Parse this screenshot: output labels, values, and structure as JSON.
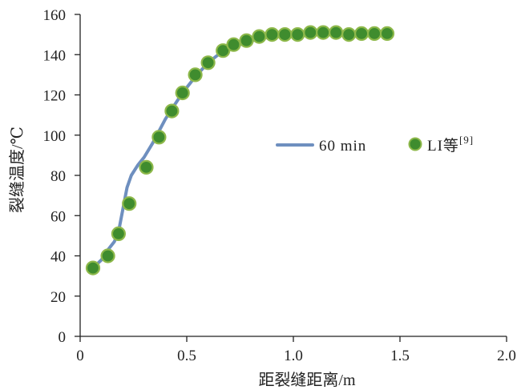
{
  "chart_data": {
    "type": "line",
    "xlabel": "距裂缝距离/m",
    "ylabel": "裂缝温度/℃",
    "xlim": [
      0,
      2.0
    ],
    "ylim": [
      0,
      160
    ],
    "x_ticks": [
      "0",
      "0.5",
      "1.0",
      "1.5",
      "2.0"
    ],
    "y_ticks": [
      "0",
      "20",
      "40",
      "60",
      "80",
      "100",
      "120",
      "140",
      "160"
    ],
    "grid": false,
    "legend_position": "center-right",
    "series": [
      {
        "name": "60 min",
        "style": "line",
        "color": "#6E8FBF",
        "x": [
          0.06,
          0.1,
          0.13,
          0.16,
          0.18,
          0.2,
          0.22,
          0.24,
          0.27,
          0.3,
          0.34,
          0.37,
          0.4,
          0.43,
          0.48,
          0.54,
          0.6,
          0.66,
          0.72,
          0.78,
          0.84,
          0.9,
          0.96,
          1.02,
          1.08,
          1.14,
          1.2,
          1.26,
          1.32,
          1.38,
          1.44
        ],
        "y": [
          34,
          38,
          43,
          47,
          52,
          63,
          74,
          80,
          85,
          89,
          96,
          102,
          108,
          113,
          121,
          129,
          136,
          141,
          144,
          146,
          148,
          149,
          149.5,
          150,
          150,
          150,
          150,
          150.3,
          150.5,
          150.6,
          150.8
        ]
      },
      {
        "name": "LI等",
        "name_superscript": "[9]",
        "style": "scatter",
        "fill_color": "#3F8C2E",
        "edge_color": "#8DB84A",
        "x": [
          0.06,
          0.13,
          0.18,
          0.23,
          0.31,
          0.37,
          0.43,
          0.48,
          0.54,
          0.6,
          0.67,
          0.72,
          0.78,
          0.84,
          0.9,
          0.96,
          1.02,
          1.08,
          1.14,
          1.2,
          1.26,
          1.32,
          1.38,
          1.44
        ],
        "y": [
          34,
          40,
          51,
          66,
          84,
          99,
          112,
          121,
          130,
          136,
          142,
          145,
          147,
          149,
          150,
          150,
          150,
          151,
          151,
          151,
          150,
          150.5,
          150.5,
          150.5
        ]
      }
    ]
  }
}
